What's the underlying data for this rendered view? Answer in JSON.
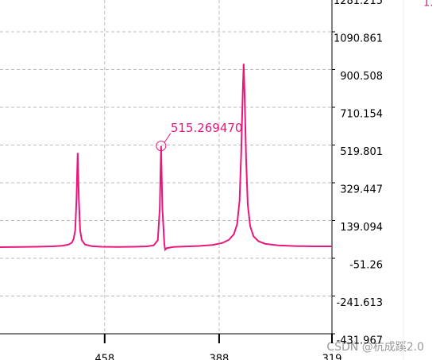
{
  "chart_data": {
    "type": "line",
    "x": [
      522,
      510,
      500,
      490,
      484,
      480,
      478,
      477,
      476,
      475.2,
      474.5,
      473.8,
      473,
      472,
      470,
      466,
      460,
      450,
      440,
      432,
      428,
      425.5,
      424.3,
      423.5,
      422.7,
      421.5,
      421,
      420,
      416,
      410,
      400,
      392,
      386,
      382,
      379,
      377,
      375.5,
      374.5,
      373.5,
      373,
      372.5,
      371.5,
      370.5,
      369,
      367,
      364,
      360,
      352,
      340,
      330,
      319
    ],
    "values": [
      5,
      6,
      7,
      9,
      12,
      18,
      28,
      45,
      90,
      250,
      480,
      250,
      90,
      40,
      18,
      10,
      7,
      6,
      7,
      9,
      14,
      40,
      200,
      515.27,
      200,
      20,
      -8,
      0,
      6,
      8,
      11,
      16,
      26,
      42,
      70,
      120,
      240,
      480,
      800,
      930,
      800,
      450,
      220,
      110,
      60,
      35,
      22,
      14,
      10,
      9,
      9
    ],
    "color": "#e8177e",
    "xlim": [
      522,
      319
    ],
    "xticks": [
      458,
      388,
      319
    ],
    "ylim": [
      -431.967,
      1281.215
    ],
    "yticks": [
      1281.215,
      1090.861,
      900.508,
      710.154,
      519.801,
      329.447,
      139.094,
      -51.26,
      -241.613,
      -431.967
    ],
    "grid": true,
    "annotation": {
      "text": "515.269470",
      "x": 423.5,
      "y": 515.27
    },
    "corner_text": "1.",
    "watermark": "CSDN @杭成蹊2.0"
  }
}
